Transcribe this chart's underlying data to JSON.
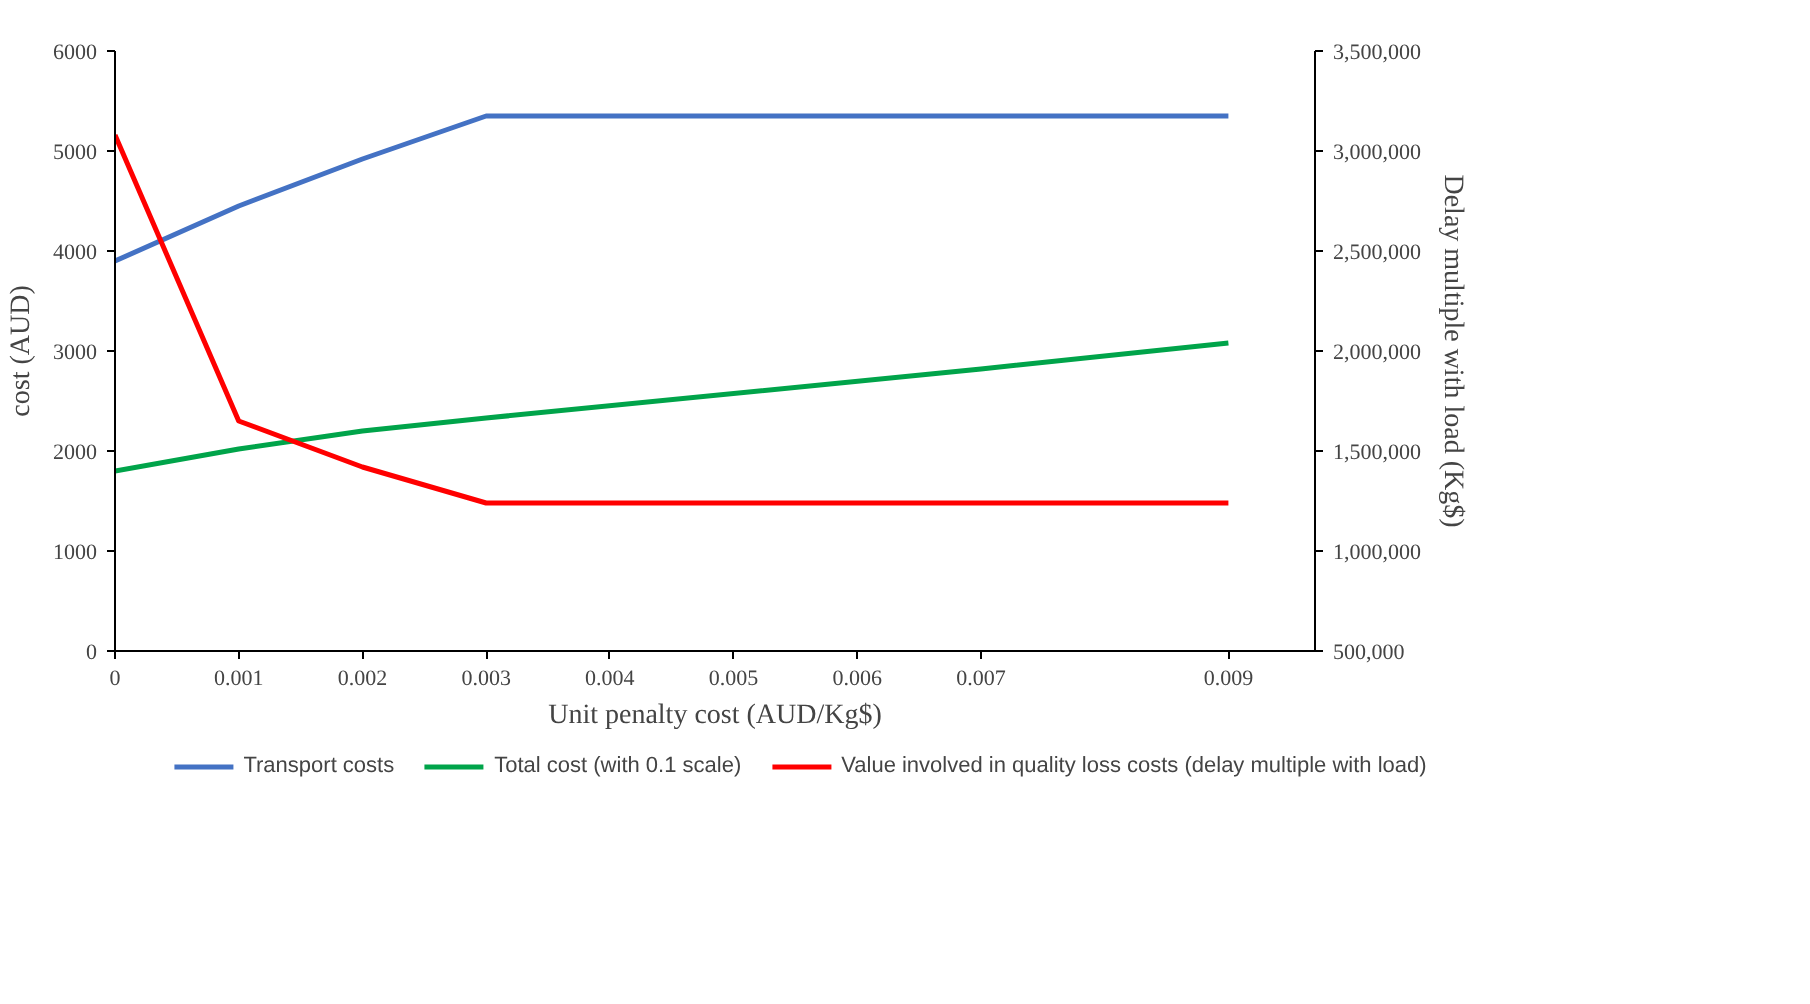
{
  "chart_data": {
    "type": "line",
    "xlabel": "Unit penalty cost (AUD/Kg$)",
    "ylabel": "cost (AUD)",
    "y2label": "Delay multiple with load (Kg$)",
    "xlim": [
      0,
      0.0097
    ],
    "xticks": [
      0,
      0.001,
      0.002,
      0.003,
      0.004,
      0.005,
      0.006,
      0.007,
      0.009
    ],
    "ylim": [
      0,
      6000
    ],
    "yticks": [
      0,
      1000,
      2000,
      3000,
      4000,
      5000,
      6000
    ],
    "y2lim": [
      500000,
      3500000
    ],
    "y2ticks": [
      {
        "value": 500000,
        "label": "500,000"
      },
      {
        "value": 1000000,
        "label": "1,000,000"
      },
      {
        "value": 1500000,
        "label": "1,500,000"
      },
      {
        "value": 2000000,
        "label": "2,000,000"
      },
      {
        "value": 2500000,
        "label": "2,500,000"
      },
      {
        "value": 3000000,
        "label": "3,000,000"
      },
      {
        "value": 3500000,
        "label": "3,500,000"
      }
    ],
    "series": [
      {
        "name": "Transport costs",
        "color": "#4472c4",
        "x": [
          0,
          0.001,
          0.002,
          0.003,
          0.009
        ],
        "values": [
          3900,
          4450,
          4920,
          5350,
          5350
        ]
      },
      {
        "name": "Total cost (with 0.1 scale)",
        "color": "#00a44a",
        "x": [
          0,
          0.001,
          0.002,
          0.003,
          0.007,
          0.009
        ],
        "values": [
          1800,
          2020,
          2200,
          2330,
          2820,
          3080
        ]
      },
      {
        "name": "Value involved in quality loss costs (delay multiple with load)",
        "color": "#ff0000",
        "axis": "y2",
        "x": [
          0,
          0.001,
          0.002,
          0.003,
          0.009
        ],
        "values": [
          3080000,
          1650000,
          1420000,
          1240000,
          1240000
        ]
      }
    ],
    "grid": false,
    "legend": "bottom"
  }
}
